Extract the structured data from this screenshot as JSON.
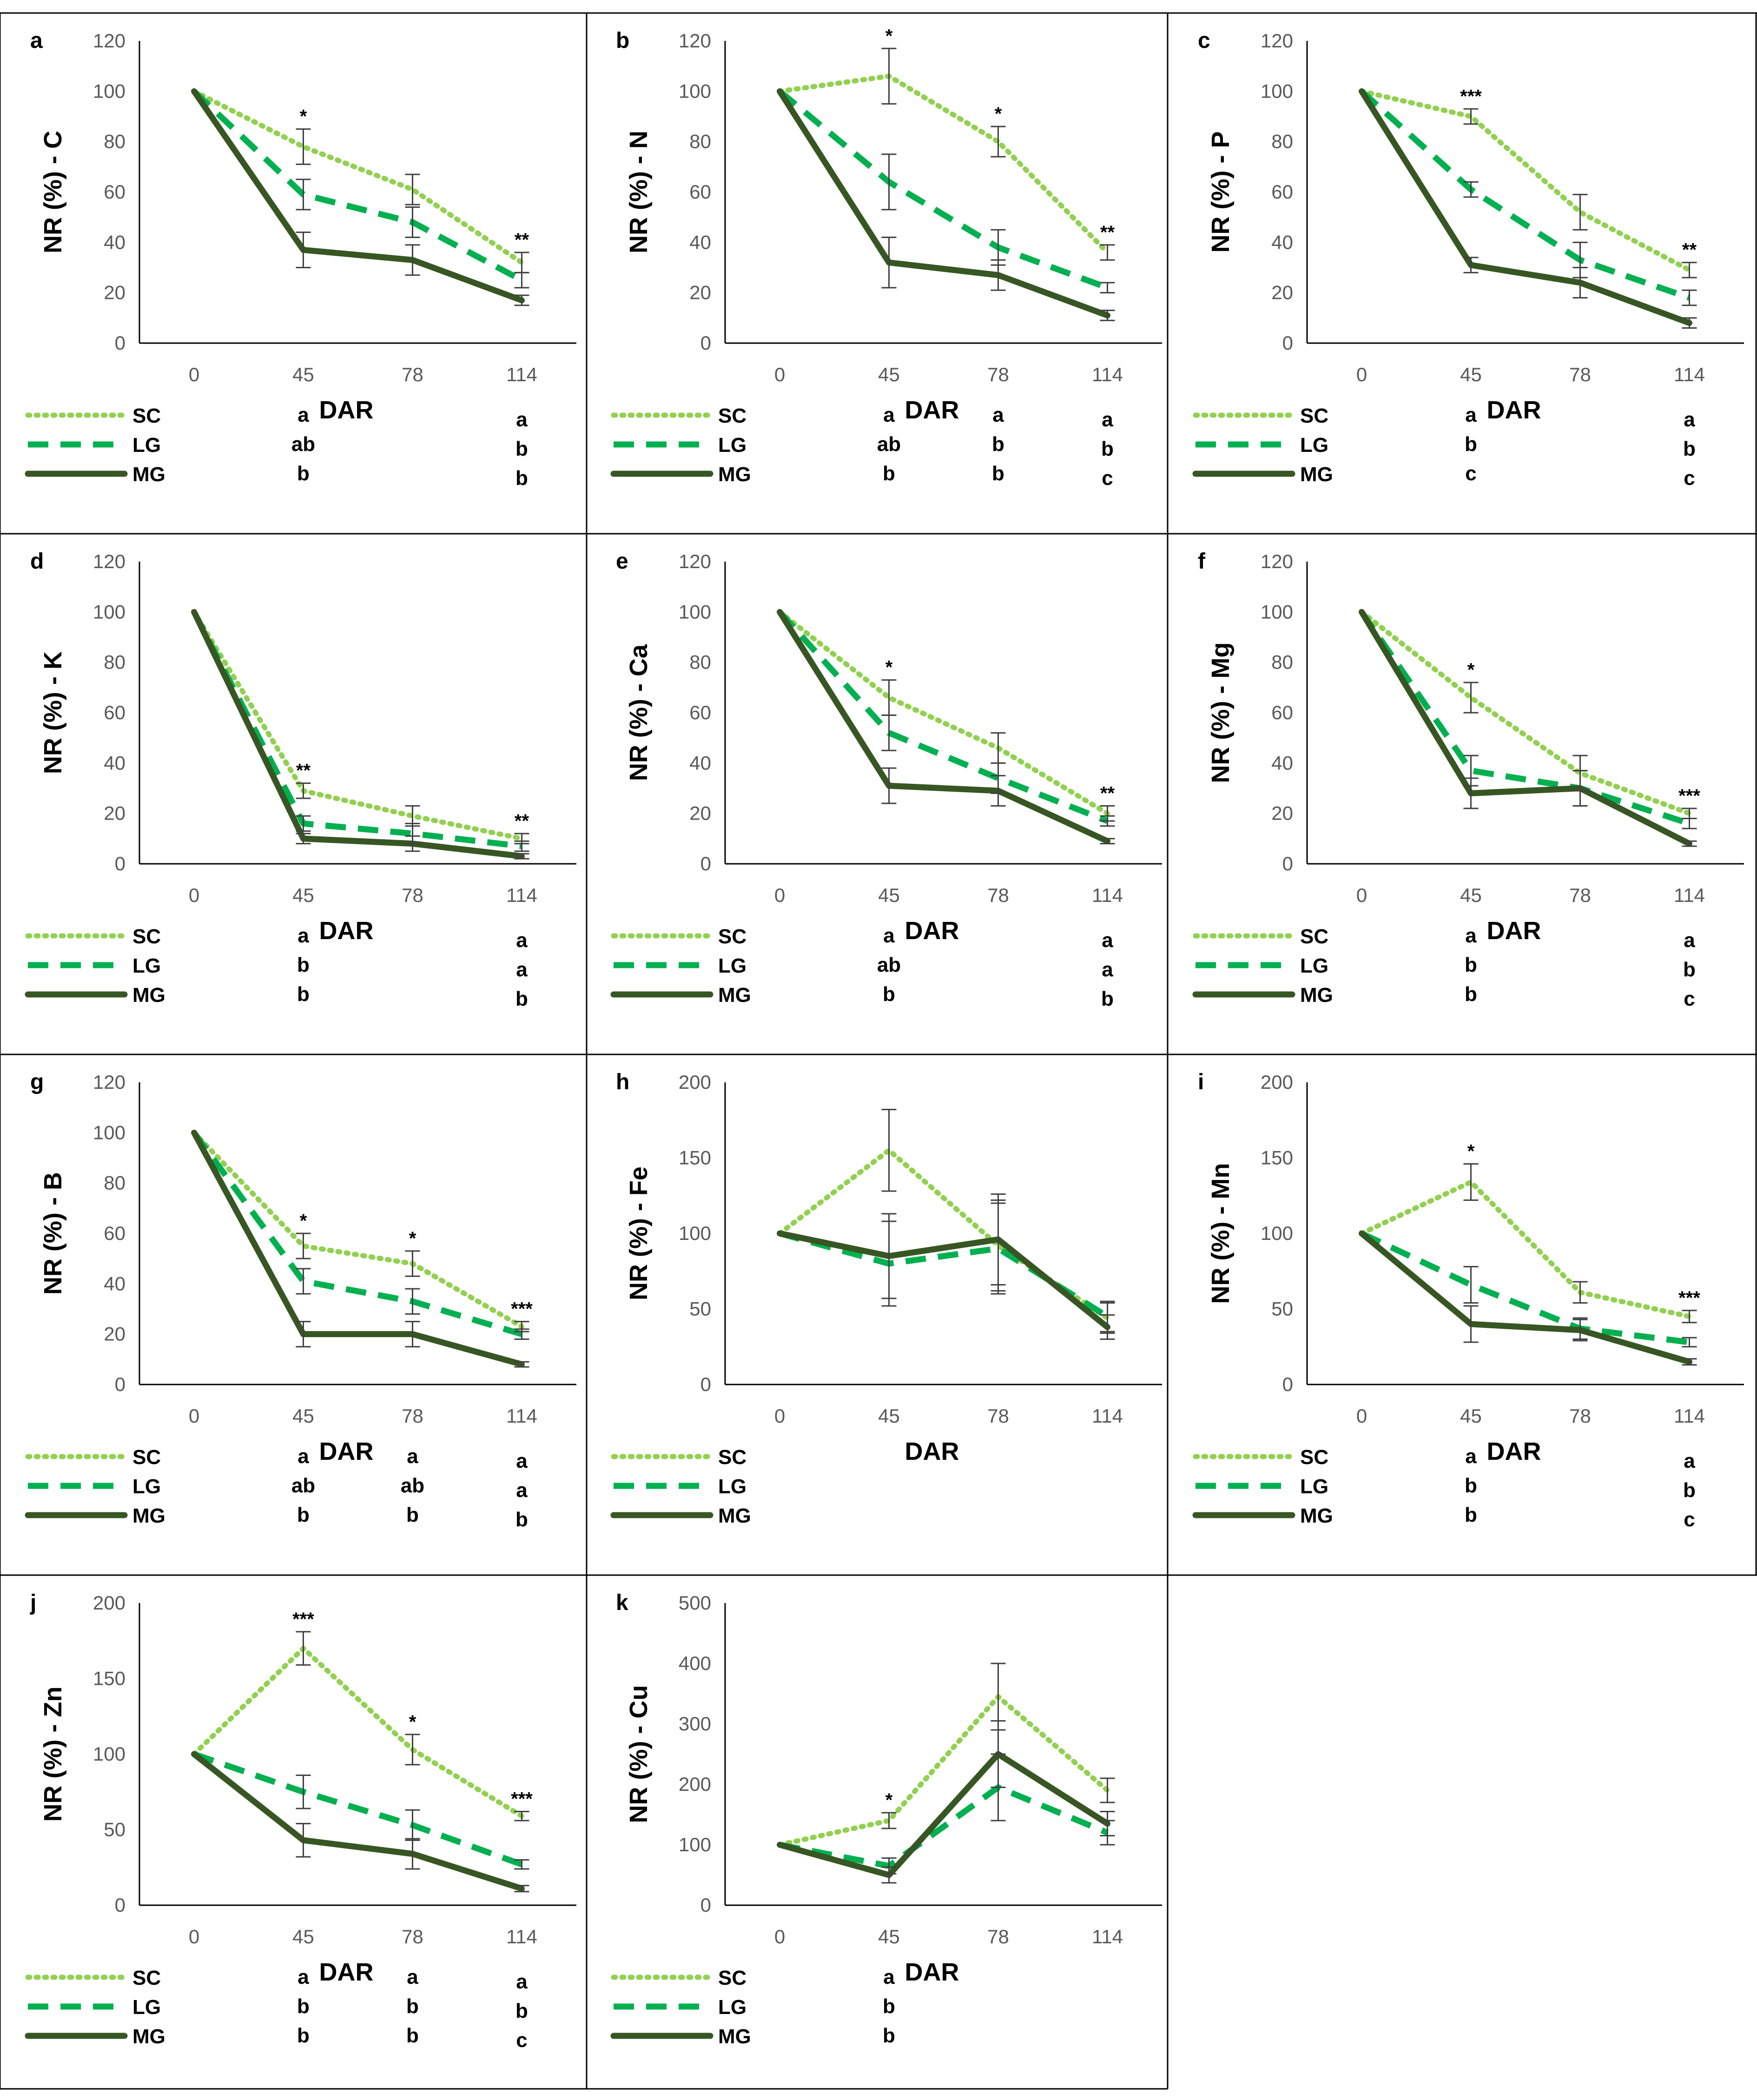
{
  "figure": {
    "x_label": "DAR",
    "x_categories": [
      "0",
      "45",
      "78",
      "114"
    ],
    "legend": [
      {
        "key": "SC",
        "label": "SC",
        "color": "#92D050",
        "style": "dotted"
      },
      {
        "key": "LG",
        "label": "LG",
        "color": "#00B050",
        "style": "dashed"
      },
      {
        "key": "MG",
        "label": "MG",
        "color": "#375623",
        "style": "solid"
      }
    ],
    "frame_color": "#000000",
    "axis_color": "#000000",
    "error_bar_color": "#404040"
  },
  "chart_data": [
    {
      "panel": "a",
      "type": "line",
      "ylabel": "NR (%) - C",
      "xlabel": "DAR",
      "categories": [
        "0",
        "45",
        "78",
        "114"
      ],
      "ylim": [
        0,
        120
      ],
      "yticks": [
        0,
        20,
        40,
        60,
        80,
        100,
        120
      ],
      "series": [
        {
          "name": "SC",
          "values": [
            100,
            78,
            61,
            32
          ],
          "errors": [
            0,
            7,
            6,
            4
          ]
        },
        {
          "name": "LG",
          "values": [
            100,
            59,
            48,
            25
          ],
          "errors": [
            0,
            6,
            6,
            3
          ]
        },
        {
          "name": "MG",
          "values": [
            100,
            37,
            33,
            17
          ],
          "errors": [
            0,
            7,
            6,
            2
          ]
        }
      ],
      "significance": [
        "",
        "*",
        "",
        "**"
      ],
      "letters": {
        "SC": [
          "",
          "a",
          "",
          "a"
        ],
        "LG": [
          "",
          "ab",
          "",
          "b"
        ],
        "MG": [
          "",
          "b",
          "",
          "b"
        ]
      }
    },
    {
      "panel": "b",
      "type": "line",
      "ylabel": "NR (%) - N",
      "xlabel": "DAR",
      "categories": [
        "0",
        "45",
        "78",
        "114"
      ],
      "ylim": [
        0,
        120
      ],
      "yticks": [
        0,
        20,
        40,
        60,
        80,
        100,
        120
      ],
      "series": [
        {
          "name": "SC",
          "values": [
            100,
            106,
            80,
            36
          ],
          "errors": [
            0,
            11,
            6,
            3
          ]
        },
        {
          "name": "LG",
          "values": [
            100,
            64,
            38,
            22
          ],
          "errors": [
            0,
            11,
            7,
            2
          ]
        },
        {
          "name": "MG",
          "values": [
            100,
            32,
            27,
            11
          ],
          "errors": [
            0,
            10,
            6,
            2
          ]
        }
      ],
      "significance": [
        "",
        "*",
        "*",
        "**"
      ],
      "letters": {
        "SC": [
          "",
          "a",
          "a",
          "a"
        ],
        "LG": [
          "",
          "ab",
          "b",
          "b"
        ],
        "MG": [
          "",
          "b",
          "b",
          "c"
        ]
      }
    },
    {
      "panel": "c",
      "type": "line",
      "ylabel": "NR (%) - P",
      "xlabel": "DAR",
      "categories": [
        "0",
        "45",
        "78",
        "114"
      ],
      "ylim": [
        0,
        120
      ],
      "yticks": [
        0,
        20,
        40,
        60,
        80,
        100,
        120
      ],
      "series": [
        {
          "name": "SC",
          "values": [
            100,
            90,
            52,
            29
          ],
          "errors": [
            0,
            3,
            7,
            3
          ]
        },
        {
          "name": "LG",
          "values": [
            100,
            61,
            33,
            18
          ],
          "errors": [
            0,
            3,
            7,
            3
          ]
        },
        {
          "name": "MG",
          "values": [
            100,
            31,
            24,
            8
          ],
          "errors": [
            0,
            3,
            6,
            2
          ]
        }
      ],
      "significance": [
        "",
        "***",
        "",
        "**"
      ],
      "letters": {
        "SC": [
          "",
          "a",
          "",
          "a"
        ],
        "LG": [
          "",
          "b",
          "",
          "b"
        ],
        "MG": [
          "",
          "c",
          "",
          "c"
        ]
      }
    },
    {
      "panel": "d",
      "type": "line",
      "ylabel": "NR (%) - K",
      "xlabel": "DAR",
      "categories": [
        "0",
        "45",
        "78",
        "114"
      ],
      "ylim": [
        0,
        120
      ],
      "yticks": [
        0,
        20,
        40,
        60,
        80,
        100,
        120
      ],
      "series": [
        {
          "name": "SC",
          "values": [
            100,
            29,
            19,
            10
          ],
          "errors": [
            0,
            3,
            4,
            2
          ]
        },
        {
          "name": "LG",
          "values": [
            100,
            16,
            12,
            7
          ],
          "errors": [
            0,
            3,
            4,
            2
          ]
        },
        {
          "name": "MG",
          "values": [
            100,
            10,
            8,
            3
          ],
          "errors": [
            0,
            2,
            3,
            1
          ]
        }
      ],
      "significance": [
        "",
        "**",
        "",
        "**"
      ],
      "letters": {
        "SC": [
          "",
          "a",
          "",
          "a"
        ],
        "LG": [
          "",
          "b",
          "",
          "a"
        ],
        "MG": [
          "",
          "b",
          "",
          "b"
        ]
      }
    },
    {
      "panel": "e",
      "type": "line",
      "ylabel": "NR (%) - Ca",
      "xlabel": "DAR",
      "categories": [
        "0",
        "45",
        "78",
        "114"
      ],
      "ylim": [
        0,
        120
      ],
      "yticks": [
        0,
        20,
        40,
        60,
        80,
        100,
        120
      ],
      "series": [
        {
          "name": "SC",
          "values": [
            100,
            66,
            46,
            20
          ],
          "errors": [
            0,
            7,
            6,
            3
          ]
        },
        {
          "name": "LG",
          "values": [
            100,
            52,
            34,
            17
          ],
          "errors": [
            0,
            7,
            6,
            2
          ]
        },
        {
          "name": "MG",
          "values": [
            100,
            31,
            29,
            9
          ],
          "errors": [
            0,
            7,
            6,
            1
          ]
        }
      ],
      "significance": [
        "",
        "*",
        "",
        "**"
      ],
      "letters": {
        "SC": [
          "",
          "a",
          "",
          "a"
        ],
        "LG": [
          "",
          "ab",
          "",
          "a"
        ],
        "MG": [
          "",
          "b",
          "",
          "b"
        ]
      }
    },
    {
      "panel": "f",
      "type": "line",
      "ylabel": "NR (%) - Mg",
      "xlabel": "DAR",
      "categories": [
        "0",
        "45",
        "78",
        "114"
      ],
      "ylim": [
        0,
        120
      ],
      "yticks": [
        0,
        20,
        40,
        60,
        80,
        100,
        120
      ],
      "series": [
        {
          "name": "SC",
          "values": [
            100,
            66,
            36,
            20
          ],
          "errors": [
            0,
            6,
            7,
            2
          ]
        },
        {
          "name": "LG",
          "values": [
            100,
            37,
            30,
            16
          ],
          "errors": [
            0,
            6,
            7,
            2
          ]
        },
        {
          "name": "MG",
          "values": [
            100,
            28,
            30,
            8
          ],
          "errors": [
            0,
            6,
            7,
            1
          ]
        }
      ],
      "significance": [
        "",
        "*",
        "",
        "***"
      ],
      "letters": {
        "SC": [
          "",
          "a",
          "",
          "a"
        ],
        "LG": [
          "",
          "b",
          "",
          "b"
        ],
        "MG": [
          "",
          "b",
          "",
          "c"
        ]
      }
    },
    {
      "panel": "g",
      "type": "line",
      "ylabel": "NR (%) - B",
      "xlabel": "DAR",
      "categories": [
        "0",
        "45",
        "78",
        "114"
      ],
      "ylim": [
        0,
        120
      ],
      "yticks": [
        0,
        20,
        40,
        60,
        80,
        100,
        120
      ],
      "series": [
        {
          "name": "SC",
          "values": [
            100,
            55,
            48,
            23
          ],
          "errors": [
            0,
            5,
            5,
            2
          ]
        },
        {
          "name": "LG",
          "values": [
            100,
            41,
            33,
            20
          ],
          "errors": [
            0,
            5,
            5,
            2
          ]
        },
        {
          "name": "MG",
          "values": [
            100,
            20,
            20,
            8
          ],
          "errors": [
            0,
            5,
            5,
            1
          ]
        }
      ],
      "significance": [
        "",
        "*",
        "*",
        "***"
      ],
      "letters": {
        "SC": [
          "",
          "a",
          "a",
          "a"
        ],
        "LG": [
          "",
          "ab",
          "ab",
          "a"
        ],
        "MG": [
          "",
          "b",
          "b",
          "b"
        ]
      }
    },
    {
      "panel": "h",
      "type": "line",
      "ylabel": "NR (%) - Fe",
      "xlabel": "DAR",
      "categories": [
        "0",
        "45",
        "78",
        "114"
      ],
      "ylim": [
        0,
        200
      ],
      "yticks": [
        0,
        50,
        100,
        150,
        200
      ],
      "series": [
        {
          "name": "SC",
          "values": [
            100,
            155,
            92,
            44
          ],
          "errors": [
            0,
            27,
            30,
            10
          ]
        },
        {
          "name": "LG",
          "values": [
            100,
            80,
            90,
            45
          ],
          "errors": [
            0,
            28,
            30,
            10
          ]
        },
        {
          "name": "MG",
          "values": [
            100,
            85,
            96,
            38
          ],
          "errors": [
            0,
            28,
            30,
            8
          ]
        }
      ],
      "significance": [
        "",
        "",
        "",
        ""
      ],
      "letters": {
        "SC": [
          "",
          "",
          "",
          ""
        ],
        "LG": [
          "",
          "",
          "",
          ""
        ],
        "MG": [
          "",
          "",
          "",
          ""
        ]
      }
    },
    {
      "panel": "i",
      "type": "line",
      "ylabel": "NR (%) - Mn",
      "xlabel": "DAR",
      "categories": [
        "0",
        "45",
        "78",
        "114"
      ],
      "ylim": [
        0,
        200
      ],
      "yticks": [
        0,
        50,
        100,
        150,
        200
      ],
      "series": [
        {
          "name": "SC",
          "values": [
            100,
            134,
            61,
            45
          ],
          "errors": [
            0,
            12,
            7,
            4
          ]
        },
        {
          "name": "LG",
          "values": [
            100,
            66,
            37,
            28
          ],
          "errors": [
            0,
            12,
            7,
            3
          ]
        },
        {
          "name": "MG",
          "values": [
            100,
            40,
            36,
            15
          ],
          "errors": [
            0,
            12,
            7,
            2
          ]
        }
      ],
      "significance": [
        "",
        "*",
        "",
        "***"
      ],
      "letters": {
        "SC": [
          "",
          "a",
          "",
          "a"
        ],
        "LG": [
          "",
          "b",
          "",
          "b"
        ],
        "MG": [
          "",
          "b",
          "",
          "c"
        ]
      }
    },
    {
      "panel": "j",
      "type": "line",
      "ylabel": "NR (%) - Zn",
      "xlabel": "DAR",
      "categories": [
        "0",
        "45",
        "78",
        "114"
      ],
      "ylim": [
        0,
        200
      ],
      "yticks": [
        0,
        50,
        100,
        150,
        200
      ],
      "series": [
        {
          "name": "SC",
          "values": [
            100,
            170,
            103,
            59
          ],
          "errors": [
            0,
            11,
            10,
            3
          ]
        },
        {
          "name": "LG",
          "values": [
            100,
            75,
            53,
            27
          ],
          "errors": [
            0,
            11,
            10,
            3
          ]
        },
        {
          "name": "MG",
          "values": [
            100,
            43,
            34,
            11
          ],
          "errors": [
            0,
            11,
            10,
            2
          ]
        }
      ],
      "significance": [
        "",
        "***",
        "*",
        "***"
      ],
      "letters": {
        "SC": [
          "",
          "a",
          "a",
          "a"
        ],
        "LG": [
          "",
          "b",
          "b",
          "b"
        ],
        "MG": [
          "",
          "b",
          "b",
          "c"
        ]
      }
    },
    {
      "panel": "k",
      "type": "line",
      "ylabel": "NR (%) - Cu",
      "xlabel": "DAR",
      "categories": [
        "0",
        "45",
        "78",
        "114"
      ],
      "ylim": [
        0,
        500
      ],
      "yticks": [
        0,
        100,
        200,
        300,
        400,
        500
      ],
      "series": [
        {
          "name": "SC",
          "values": [
            100,
            140,
            345,
            190
          ],
          "errors": [
            0,
            13,
            55,
            20
          ]
        },
        {
          "name": "LG",
          "values": [
            100,
            65,
            195,
            120
          ],
          "errors": [
            0,
            13,
            55,
            20
          ]
        },
        {
          "name": "MG",
          "values": [
            100,
            50,
            250,
            135
          ],
          "errors": [
            0,
            13,
            55,
            20
          ]
        }
      ],
      "significance": [
        "",
        "*",
        "",
        ""
      ],
      "letters": {
        "SC": [
          "",
          "a",
          "",
          ""
        ],
        "LG": [
          "",
          "b",
          "",
          ""
        ],
        "MG": [
          "",
          "b",
          "",
          ""
        ]
      }
    }
  ]
}
